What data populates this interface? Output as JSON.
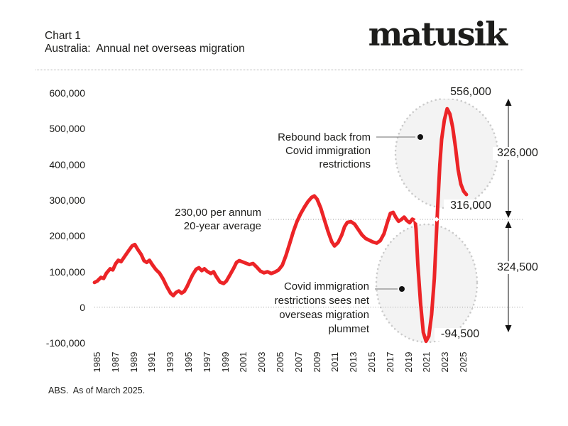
{
  "header": {
    "chart_label": "Chart 1",
    "title": "Australia:  Annual net overseas migration",
    "logo": "matusik"
  },
  "footer": {
    "source": "ABS.  As of March 2025."
  },
  "colors": {
    "line": "#ec2427",
    "ink": "#1d1d1b",
    "muted": "#999999",
    "circle_fill": "#f3f3f3",
    "circle_dots": "#cbcbcb"
  },
  "annotations": {
    "average": [
      "230,00 per annum",
      "20-year average"
    ],
    "rebound": [
      "Rebound back from",
      "Covid immigration",
      "restrictions"
    ],
    "covid_plummet": [
      "Covid immigration",
      "restrictions sees net",
      "overseas migration",
      "plummet"
    ],
    "peak_label": "556,000",
    "end_label": "316,000",
    "trough_label": "-94,500",
    "upper_span_label": "326,000",
    "lower_span_label": "324,500"
  },
  "chart_data": {
    "type": "line",
    "title": "Australia: Annual net overseas migration",
    "series_name": "Annual net overseas migration",
    "unit": "persons per annum",
    "xlim": [
      1984.5,
      2025.5
    ],
    "ylim": [
      -100000,
      600000
    ],
    "grid": false,
    "average_line": {
      "value": 230000,
      "label": "230,00 per annum 20-year average"
    },
    "key_points": {
      "peak_2023": 556000,
      "end_2025": 316000,
      "trough_2021": -94500,
      "rebound_span": 326000,
      "plummet_span": 324500
    },
    "y_ticks": [
      {
        "label": "600,000",
        "value": 600000
      },
      {
        "label": "500,000",
        "value": 500000
      },
      {
        "label": "400,000",
        "value": 400000
      },
      {
        "label": "300,000",
        "value": 300000
      },
      {
        "label": "200,000",
        "value": 200000
      },
      {
        "label": "100,000",
        "value": 100000
      },
      {
        "label": "0",
        "value": 0
      },
      {
        "label": "-100,000",
        "value": -100000
      }
    ],
    "x_ticks": [
      "1985",
      "1987",
      "1989",
      "1991",
      "1993",
      "1995",
      "1997",
      "1999",
      "2001",
      "2003",
      "2005",
      "2007",
      "2009",
      "2011",
      "2013",
      "2015",
      "2017",
      "2019",
      "2021",
      "2023",
      "2025"
    ],
    "points": [
      [
        1984.7,
        70000
      ],
      [
        1985.0,
        74000
      ],
      [
        1985.4,
        84000
      ],
      [
        1985.7,
        81000
      ],
      [
        1986.0,
        96000
      ],
      [
        1986.4,
        108000
      ],
      [
        1986.7,
        105000
      ],
      [
        1987.0,
        122000
      ],
      [
        1987.3,
        132000
      ],
      [
        1987.6,
        128000
      ],
      [
        1988.0,
        143000
      ],
      [
        1988.4,
        158000
      ],
      [
        1988.8,
        172000
      ],
      [
        1989.1,
        176000
      ],
      [
        1989.4,
        163000
      ],
      [
        1989.8,
        148000
      ],
      [
        1990.1,
        131000
      ],
      [
        1990.4,
        126000
      ],
      [
        1990.7,
        132000
      ],
      [
        1991.0,
        120000
      ],
      [
        1991.4,
        106000
      ],
      [
        1991.8,
        96000
      ],
      [
        1992.2,
        79000
      ],
      [
        1992.6,
        58000
      ],
      [
        1993.0,
        40000
      ],
      [
        1993.3,
        33000
      ],
      [
        1993.6,
        42000
      ],
      [
        1993.9,
        46000
      ],
      [
        1994.2,
        40000
      ],
      [
        1994.5,
        45000
      ],
      [
        1994.8,
        58000
      ],
      [
        1995.1,
        75000
      ],
      [
        1995.4,
        91000
      ],
      [
        1995.8,
        107000
      ],
      [
        1996.1,
        111000
      ],
      [
        1996.4,
        103000
      ],
      [
        1996.7,
        108000
      ],
      [
        1997.0,
        101000
      ],
      [
        1997.4,
        95000
      ],
      [
        1997.7,
        100000
      ],
      [
        1998.0,
        86000
      ],
      [
        1998.4,
        71000
      ],
      [
        1998.8,
        67000
      ],
      [
        1999.1,
        74000
      ],
      [
        1999.5,
        92000
      ],
      [
        1999.9,
        110000
      ],
      [
        2000.2,
        126000
      ],
      [
        2000.5,
        131000
      ],
      [
        2000.8,
        128000
      ],
      [
        2001.2,
        124000
      ],
      [
        2001.6,
        120000
      ],
      [
        2002.0,
        123000
      ],
      [
        2002.4,
        113000
      ],
      [
        2002.8,
        102000
      ],
      [
        2003.2,
        97000
      ],
      [
        2003.6,
        100000
      ],
      [
        2004.0,
        95000
      ],
      [
        2004.4,
        99000
      ],
      [
        2004.8,
        105000
      ],
      [
        2005.2,
        118000
      ],
      [
        2005.6,
        145000
      ],
      [
        2006.0,
        178000
      ],
      [
        2006.4,
        212000
      ],
      [
        2006.8,
        240000
      ],
      [
        2007.2,
        262000
      ],
      [
        2007.6,
        280000
      ],
      [
        2008.0,
        296000
      ],
      [
        2008.4,
        308000
      ],
      [
        2008.7,
        312000
      ],
      [
        2009.0,
        303000
      ],
      [
        2009.4,
        278000
      ],
      [
        2009.8,
        245000
      ],
      [
        2010.2,
        212000
      ],
      [
        2010.6,
        184000
      ],
      [
        2010.9,
        172000
      ],
      [
        2011.3,
        182000
      ],
      [
        2011.7,
        203000
      ],
      [
        2012.0,
        226000
      ],
      [
        2012.3,
        238000
      ],
      [
        2012.7,
        240000
      ],
      [
        2013.1,
        233000
      ],
      [
        2013.5,
        218000
      ],
      [
        2013.9,
        203000
      ],
      [
        2014.3,
        193000
      ],
      [
        2014.7,
        188000
      ],
      [
        2015.1,
        183000
      ],
      [
        2015.5,
        180000
      ],
      [
        2015.9,
        187000
      ],
      [
        2016.3,
        206000
      ],
      [
        2016.7,
        240000
      ],
      [
        2017.0,
        263000
      ],
      [
        2017.3,
        266000
      ],
      [
        2017.6,
        252000
      ],
      [
        2017.9,
        241000
      ],
      [
        2018.2,
        246000
      ],
      [
        2018.5,
        253000
      ],
      [
        2018.8,
        243000
      ],
      [
        2019.1,
        237000
      ],
      [
        2019.4,
        247000
      ],
      [
        2019.7,
        243000
      ],
      [
        2019.8,
        220000
      ],
      [
        2020.0,
        120000
      ],
      [
        2020.3,
        10000
      ],
      [
        2020.6,
        -70000
      ],
      [
        2020.9,
        -94500
      ],
      [
        2021.2,
        -80000
      ],
      [
        2021.5,
        -20000
      ],
      [
        2021.8,
        80000
      ],
      [
        2022.0,
        190000
      ],
      [
        2022.2,
        300000
      ],
      [
        2022.4,
        400000
      ],
      [
        2022.6,
        470000
      ],
      [
        2022.9,
        525000
      ],
      [
        2023.2,
        556000
      ],
      [
        2023.5,
        541000
      ],
      [
        2023.8,
        505000
      ],
      [
        2024.1,
        450000
      ],
      [
        2024.4,
        385000
      ],
      [
        2024.7,
        345000
      ],
      [
        2025.0,
        325000
      ],
      [
        2025.3,
        316000
      ]
    ]
  }
}
